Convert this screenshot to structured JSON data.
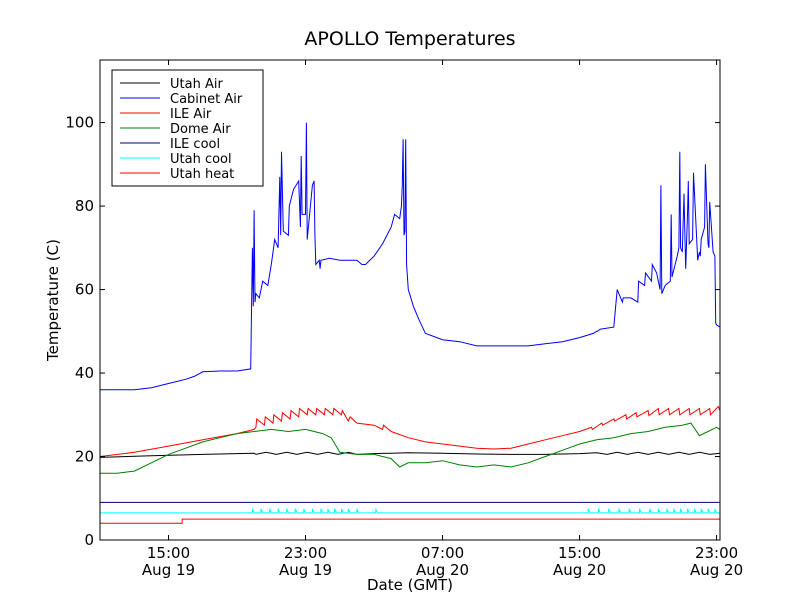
{
  "chart_data": {
    "type": "line",
    "title": "APOLLO Temperatures",
    "xlabel": "Date (GMT)",
    "ylabel": "Temperature (C)",
    "x_unit": "hours since Aug 19 11:00 GMT",
    "xlim": [
      0,
      36.2
    ],
    "ylim": [
      0,
      115
    ],
    "y_ticks": [
      0,
      20,
      40,
      60,
      80,
      100
    ],
    "x_ticks": [
      {
        "x": 4,
        "time": "15:00",
        "date": "Aug 19"
      },
      {
        "x": 12,
        "time": "23:00",
        "date": "Aug 19"
      },
      {
        "x": 20,
        "time": "07:00",
        "date": "Aug 20"
      },
      {
        "x": 28,
        "time": "15:00",
        "date": "Aug 20"
      },
      {
        "x": 36,
        "time": "23:00",
        "date": "Aug 20"
      }
    ],
    "grid": false,
    "legend_position": "top-left",
    "series": [
      {
        "name": "Utah Air",
        "color": "#000000",
        "x": [
          0,
          3,
          6,
          9,
          9.1,
          9.7,
          10.3,
          10.9,
          11.5,
          12.1,
          12.7,
          13.3,
          13.9,
          14.5,
          15,
          16,
          17,
          18,
          20,
          22,
          24,
          26,
          28,
          29,
          29.6,
          30.2,
          30.8,
          31.4,
          32,
          32.6,
          33.2,
          33.8,
          34.4,
          35,
          35.6,
          36.2
        ],
        "y": [
          19.8,
          20.2,
          20.5,
          20.8,
          20.5,
          21,
          20.5,
          21,
          20.5,
          21,
          20.5,
          21,
          20.5,
          21,
          20.5,
          20.7,
          20.8,
          20.9,
          20.8,
          20.6,
          20.5,
          20.5,
          20.7,
          20.9,
          20.5,
          21,
          20.5,
          21,
          20.5,
          21,
          20.5,
          21,
          20.5,
          21,
          20.5,
          20.8
        ]
      },
      {
        "name": "Cabinet Air",
        "color": "#0000ff",
        "x": [
          0,
          1,
          2,
          3,
          4,
          5,
          5.5,
          6,
          7,
          8,
          8.8,
          8.9,
          8.95,
          9,
          9.05,
          9.1,
          9.3,
          9.5,
          9.8,
          10,
          10.2,
          10.4,
          10.5,
          10.55,
          10.6,
          10.7,
          11.0,
          11.05,
          11.3,
          11.6,
          11.7,
          11.75,
          11.8,
          12,
          12.05,
          12.1,
          12.4,
          12.5,
          12.55,
          12.6,
          12.8,
          12.85,
          12.9,
          13.4,
          14,
          15,
          15.3,
          15.5,
          16,
          16.5,
          17,
          17.2,
          17.5,
          17.6,
          17.65,
          17.7,
          17.75,
          17.8,
          17.85,
          17.9,
          18,
          18.3,
          18.6,
          19,
          20,
          21,
          22,
          23,
          24,
          25,
          26,
          27,
          28,
          28.8,
          29,
          29.05,
          29.2,
          30,
          30.2,
          30.5,
          30.55,
          31,
          31.4,
          31.45,
          31.8,
          31.85,
          32.2,
          32.25,
          32.5,
          32.7,
          32.75,
          32.8,
          33,
          33.3,
          33.35,
          33.4,
          33.7,
          33.8,
          33.85,
          33.9,
          34,
          34.1,
          34.15,
          34.2,
          34.3,
          34.35,
          34.4,
          34.6,
          34.65,
          34.9,
          35,
          35.05,
          35.1,
          35.3,
          35.35,
          35.5,
          35.55,
          35.6,
          35.8,
          35.9,
          35.95,
          36,
          36.2
        ],
        "y": [
          36,
          36,
          36,
          36.5,
          37.5,
          38.5,
          39.2,
          40.3,
          40.5,
          40.5,
          41,
          70,
          56,
          79,
          57,
          59,
          58,
          62,
          61,
          66,
          72,
          70,
          87,
          73,
          93,
          74,
          73,
          80,
          84,
          86,
          75,
          92,
          78,
          78,
          100,
          72,
          85,
          86,
          73,
          66,
          67,
          65,
          67,
          67.5,
          67,
          67,
          66,
          66,
          68,
          71,
          75,
          78,
          77,
          80,
          85,
          96,
          73,
          74,
          96,
          66,
          60,
          56,
          53,
          49.5,
          48,
          47.5,
          46.5,
          46.5,
          46.5,
          46.5,
          47,
          47.5,
          48.5,
          49.5,
          50,
          50,
          50.5,
          51,
          60,
          57,
          58,
          58,
          57,
          62,
          61,
          64,
          62,
          66,
          64,
          60,
          85,
          59,
          61,
          62,
          78,
          63,
          68,
          70,
          93,
          70,
          69,
          83,
          73,
          65,
          78,
          86,
          71,
          72,
          88,
          67,
          69,
          68,
          72,
          75,
          90,
          71,
          70,
          81,
          69,
          68,
          52,
          51.5,
          51
        ]
      },
      {
        "name": "ILE Air",
        "color": "#ff0000",
        "x": [
          0,
          2,
          4,
          6,
          8,
          9,
          9.1,
          9.15,
          9.6,
          9.65,
          10.1,
          10.15,
          10.6,
          10.65,
          11.1,
          11.15,
          11.6,
          11.65,
          12.1,
          12.15,
          12.6,
          12.65,
          13.1,
          13.15,
          13.6,
          13.65,
          14.1,
          14.15,
          14.5,
          14.6,
          15,
          16,
          16.5,
          16.55,
          17,
          18,
          19,
          20,
          21,
          22,
          23,
          24,
          25,
          26,
          27,
          28,
          28.7,
          28.75,
          29.3,
          29.35,
          30,
          30.05,
          30.7,
          30.75,
          31.3,
          31.35,
          32,
          32.05,
          32.6,
          32.65,
          33.2,
          33.25,
          33.8,
          33.85,
          34.4,
          34.45,
          35,
          35.05,
          35.6,
          35.65,
          36.1,
          36.2
        ],
        "y": [
          20,
          21,
          22.5,
          24,
          25.5,
          26.5,
          27,
          29,
          27.5,
          29.5,
          28,
          30,
          28.5,
          30.5,
          29,
          31,
          29.5,
          31.5,
          30,
          31.5,
          30,
          31.5,
          30,
          31.5,
          30,
          31.5,
          30,
          31,
          28.5,
          29.5,
          28,
          27.5,
          26.5,
          27.5,
          26,
          24.5,
          23.5,
          23,
          22.5,
          22,
          21.8,
          22,
          23,
          24,
          25,
          26,
          27,
          26.5,
          28,
          27.5,
          29,
          28.5,
          30,
          29,
          30.5,
          29.5,
          31,
          29.8,
          31.5,
          30,
          31.5,
          30,
          31.5,
          30,
          31.5,
          30,
          31.5,
          30,
          31.5,
          30,
          32,
          31
        ]
      },
      {
        "name": "Dome Air",
        "color": "#008000",
        "x": [
          0,
          1,
          2,
          3,
          4,
          5,
          6,
          7,
          8,
          9,
          10,
          11,
          12,
          13,
          13.5,
          14,
          15,
          16,
          16.5,
          17,
          17.5,
          18,
          19,
          20,
          21,
          22,
          23,
          24,
          25,
          26,
          27,
          28,
          29,
          30,
          31,
          32,
          33,
          34,
          34.5,
          35,
          35.5,
          36,
          36.2
        ],
        "y": [
          16,
          16,
          16.5,
          18.5,
          20.5,
          22,
          23.5,
          24.5,
          25.5,
          26,
          26.5,
          26,
          26.5,
          25.5,
          24.5,
          21,
          20.5,
          20.5,
          20,
          19.5,
          17.5,
          18.5,
          18.5,
          19,
          18,
          17.5,
          18,
          17.5,
          18.5,
          20,
          21.5,
          23,
          24,
          24.5,
          25.5,
          26,
          27,
          27.5,
          28,
          25,
          26,
          27,
          26.5
        ]
      },
      {
        "name": "ILE cool",
        "color": "#000080",
        "x": [
          0,
          36.2
        ],
        "y": [
          9,
          9
        ]
      },
      {
        "name": "Utah cool",
        "color": "#00ffff",
        "x": [
          0,
          8.9,
          8.9,
          9.0,
          9.4,
          9.4,
          9.5,
          9.9,
          9.9,
          10.0,
          10.4,
          10.4,
          10.5,
          10.9,
          10.9,
          11.0,
          11.4,
          11.4,
          11.5,
          11.9,
          11.9,
          12.0,
          12.4,
          12.4,
          12.5,
          12.9,
          12.9,
          13.0,
          13.3,
          13.3,
          13.4,
          13.7,
          13.7,
          13.8,
          14.1,
          14.1,
          14.2,
          14.5,
          14.5,
          14.6,
          15.0,
          15.0,
          15.1,
          16.1,
          16.1,
          16.2,
          28.5,
          28.5,
          28.6,
          29.1,
          29.1,
          29.2,
          29.7,
          29.7,
          29.8,
          30.3,
          30.3,
          30.4,
          30.9,
          30.9,
          31.0,
          31.5,
          31.5,
          31.6,
          32.1,
          32.1,
          32.2,
          32.6,
          32.6,
          32.7,
          33.1,
          33.1,
          33.2,
          33.5,
          33.5,
          33.6,
          33.9,
          33.9,
          34.0,
          34.3,
          34.3,
          34.4,
          34.7,
          34.7,
          34.8,
          35.1,
          35.1,
          35.2,
          35.5,
          35.5,
          35.6,
          35.9,
          35.9,
          36.0,
          36.2
        ],
        "y": [
          6.5,
          6.5,
          7.5,
          6.5,
          6.5,
          7.5,
          6.5,
          6.5,
          7.5,
          6.5,
          6.5,
          7.5,
          6.5,
          6.5,
          7.5,
          6.5,
          6.5,
          7.5,
          6.5,
          6.5,
          7.5,
          6.5,
          6.5,
          7.5,
          6.5,
          6.5,
          7.5,
          6.5,
          6.5,
          7.5,
          6.5,
          6.5,
          7.5,
          6.5,
          6.5,
          7.5,
          6.5,
          6.5,
          7.5,
          6.5,
          6.5,
          7.5,
          6.5,
          6.5,
          7.5,
          6.5,
          6.5,
          7.5,
          6.5,
          6.5,
          7.5,
          6.5,
          6.5,
          7.5,
          6.5,
          6.5,
          7.5,
          6.5,
          6.5,
          7.5,
          6.5,
          6.5,
          7.5,
          6.5,
          6.5,
          7.5,
          6.5,
          6.5,
          7.5,
          6.5,
          6.5,
          7.5,
          6.5,
          6.5,
          7.5,
          6.5,
          6.5,
          7.5,
          6.5,
          6.5,
          7.5,
          6.5,
          6.5,
          7.5,
          6.5,
          6.5,
          7.5,
          6.5,
          6.5,
          7.5,
          6.5,
          6.5,
          7.5,
          6.5,
          6.5
        ]
      },
      {
        "name": "Utah heat",
        "color": "#ff0000",
        "x": [
          0,
          4.8,
          4.8,
          36.2
        ],
        "y": [
          4,
          4,
          5,
          5
        ]
      }
    ]
  }
}
